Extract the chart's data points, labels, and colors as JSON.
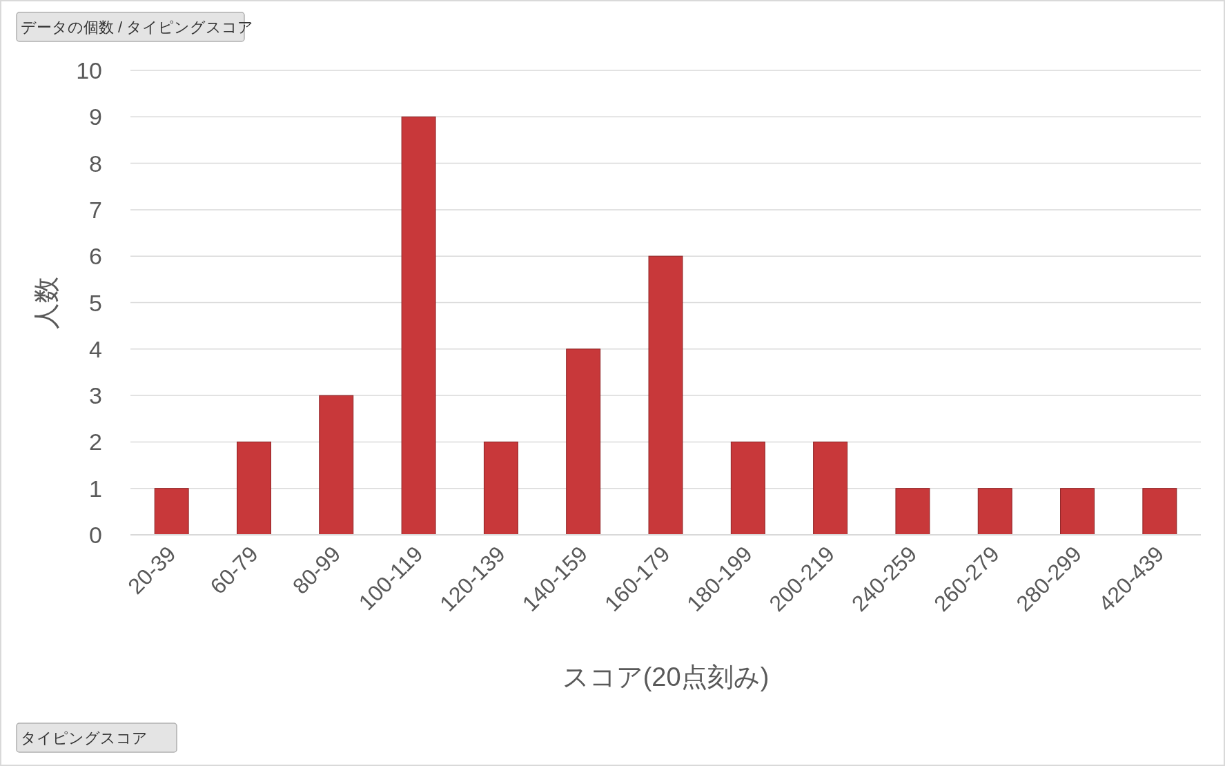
{
  "chart_data": {
    "type": "bar",
    "categories": [
      "20-39",
      "60-79",
      "80-99",
      "100-119",
      "120-139",
      "140-159",
      "160-179",
      "180-199",
      "200-219",
      "240-259",
      "260-279",
      "280-299",
      "420-439"
    ],
    "values": [
      1,
      2,
      3,
      9,
      2,
      4,
      6,
      2,
      2,
      1,
      1,
      1,
      1
    ],
    "color": "#c8383a",
    "ylim": [
      0,
      10
    ],
    "yticks": [
      0,
      1,
      2,
      3,
      4,
      5,
      6,
      7,
      8,
      9,
      10
    ],
    "grid": "y",
    "xlabel": "スコア(20点刻み)",
    "ylabel": "人数",
    "annotations": [
      "データの個数 / タイピングスコア",
      "タイピングスコア"
    ]
  }
}
